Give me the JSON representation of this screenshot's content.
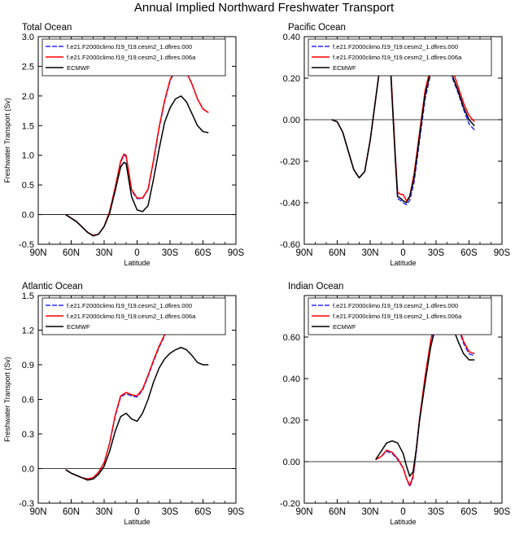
{
  "page": {
    "title": "Annual Implied Northward Freshwater Transport"
  },
  "colors": {
    "series": [
      "#2a2aff",
      "#ff0000",
      "#000000"
    ],
    "axis": "#000000",
    "zero_line": "#000000"
  },
  "chart_data": [
    {
      "id": "total",
      "type": "line",
      "title": "Total Ocean",
      "xlabel": "Latitude",
      "ylabel": "Freshwater Transport (Sv)",
      "xlim": [
        90,
        -90
      ],
      "x_ticks": [
        90,
        60,
        30,
        0,
        -30,
        -60,
        -90
      ],
      "x_tick_labels": [
        "90N",
        "60N",
        "30N",
        "0",
        "30S",
        "60S",
        "90S"
      ],
      "ylim": [
        -0.5,
        3.0
      ],
      "y_ticks": [
        -0.5,
        0,
        0.5,
        1.0,
        1.5,
        2.0,
        2.5,
        3.0
      ],
      "y_tick_labels": [
        "-0.5",
        "0.0",
        "0.5",
        "1.0",
        "1.5",
        "2.0",
        "2.5",
        "3.0"
      ],
      "grid": false,
      "legend": "top-left",
      "series": [
        {
          "name": "f.e21.F2000climo.f19_f19.cesm2_1.dfires.000",
          "style": "dashed",
          "x": [
            65,
            55,
            45,
            40,
            35,
            30,
            25,
            20,
            15,
            12,
            10,
            5,
            0,
            -5,
            -10,
            -15,
            -20,
            -25,
            -30,
            -35,
            -40,
            -45,
            -50,
            -55,
            -60,
            -65
          ],
          "y": [
            0.0,
            -0.12,
            -0.3,
            -0.35,
            -0.33,
            -0.2,
            0.05,
            0.45,
            0.88,
            1.0,
            0.98,
            0.4,
            0.27,
            0.27,
            0.42,
            0.9,
            1.45,
            1.9,
            2.25,
            2.45,
            2.5,
            2.4,
            2.2,
            1.95,
            1.78,
            1.72
          ]
        },
        {
          "name": "f.e21.F2000climo.f19_f19.cesm2_1.dfires.006a",
          "style": "solid",
          "x": [
            65,
            55,
            45,
            40,
            35,
            30,
            25,
            20,
            15,
            12,
            10,
            5,
            0,
            -5,
            -10,
            -15,
            -20,
            -25,
            -30,
            -35,
            -40,
            -45,
            -50,
            -55,
            -60,
            -65
          ],
          "y": [
            0.0,
            -0.12,
            -0.3,
            -0.35,
            -0.33,
            -0.2,
            0.05,
            0.45,
            0.9,
            1.02,
            1.0,
            0.42,
            0.28,
            0.28,
            0.43,
            0.92,
            1.47,
            1.92,
            2.27,
            2.47,
            2.5,
            2.4,
            2.2,
            1.95,
            1.78,
            1.72
          ]
        },
        {
          "name": "ECMWF",
          "style": "solid",
          "x": [
            65,
            55,
            45,
            40,
            35,
            30,
            25,
            20,
            15,
            12,
            10,
            5,
            0,
            -5,
            -10,
            -15,
            -20,
            -25,
            -30,
            -35,
            -40,
            -45,
            -50,
            -55,
            -60,
            -65
          ],
          "y": [
            0.0,
            -0.12,
            -0.3,
            -0.36,
            -0.33,
            -0.2,
            0.02,
            0.4,
            0.8,
            0.88,
            0.86,
            0.3,
            0.08,
            0.05,
            0.15,
            0.6,
            1.1,
            1.55,
            1.8,
            1.95,
            2.0,
            1.9,
            1.7,
            1.5,
            1.4,
            1.38
          ]
        }
      ]
    },
    {
      "id": "pacific",
      "type": "line",
      "title": "Pacific Ocean",
      "xlabel": "Latitude",
      "ylabel": "",
      "xlim": [
        90,
        -90
      ],
      "x_ticks": [
        90,
        60,
        30,
        0,
        -30,
        -60,
        -90
      ],
      "x_tick_labels": [
        "90N",
        "60N",
        "30N",
        "0",
        "30S",
        "60S",
        "90S"
      ],
      "ylim": [
        -0.6,
        0.4
      ],
      "y_ticks": [
        -0.6,
        -0.4,
        -0.2,
        0.0,
        0.2,
        0.4
      ],
      "y_tick_labels": [
        "-0.60",
        "-0.40",
        "-0.20",
        "0.00",
        "0.20",
        "0.40"
      ],
      "grid": false,
      "legend": "top-left",
      "series": [
        {
          "name": "f.e21.F2000climo.f19_f19.cesm2_1.dfires.000",
          "style": "dashed",
          "x": [
            65,
            60,
            55,
            50,
            45,
            40,
            35,
            30,
            25,
            20,
            15,
            12,
            10,
            7,
            5,
            2,
            0,
            -3,
            -6,
            -10,
            -15,
            -20,
            -25,
            -30,
            -35,
            -40,
            -45,
            -50,
            -55,
            -60,
            -65
          ],
          "y": [
            0.0,
            -0.01,
            -0.06,
            -0.15,
            -0.24,
            -0.28,
            -0.25,
            -0.1,
            0.1,
            0.3,
            0.36,
            0.3,
            0.1,
            -0.2,
            -0.38,
            -0.39,
            -0.4,
            -0.41,
            -0.39,
            -0.3,
            -0.1,
            0.1,
            0.22,
            0.27,
            0.28,
            0.26,
            0.2,
            0.13,
            0.05,
            -0.02,
            -0.05
          ]
        },
        {
          "name": "f.e21.F2000climo.f19_f19.cesm2_1.dfires.006a",
          "style": "solid",
          "x": [
            65,
            60,
            55,
            50,
            45,
            40,
            35,
            30,
            25,
            20,
            15,
            12,
            10,
            7,
            5,
            2,
            0,
            -3,
            -6,
            -10,
            -15,
            -20,
            -25,
            -30,
            -35,
            -40,
            -45,
            -50,
            -55,
            -60,
            -65
          ],
          "y": [
            0.0,
            -0.01,
            -0.06,
            -0.15,
            -0.24,
            -0.28,
            -0.25,
            -0.1,
            0.1,
            0.3,
            0.38,
            0.32,
            0.12,
            -0.18,
            -0.35,
            -0.36,
            -0.36,
            -0.39,
            -0.37,
            -0.26,
            -0.06,
            0.14,
            0.25,
            0.3,
            0.31,
            0.3,
            0.24,
            0.16,
            0.08,
            0.02,
            -0.01
          ]
        },
        {
          "name": "ECMWF",
          "style": "solid",
          "x": [
            65,
            60,
            55,
            50,
            45,
            40,
            35,
            30,
            25,
            20,
            15,
            12,
            10,
            7,
            5,
            2,
            0,
            -3,
            -6,
            -10,
            -15,
            -20,
            -25,
            -30,
            -35,
            -40,
            -45,
            -50,
            -55,
            -60,
            -65
          ],
          "y": [
            0.0,
            -0.01,
            -0.06,
            -0.15,
            -0.24,
            -0.28,
            -0.25,
            -0.1,
            0.1,
            0.3,
            0.37,
            0.31,
            0.1,
            -0.2,
            -0.37,
            -0.38,
            -0.39,
            -0.4,
            -0.37,
            -0.28,
            -0.08,
            0.12,
            0.23,
            0.27,
            0.28,
            0.26,
            0.21,
            0.14,
            0.06,
            0.0,
            -0.03
          ]
        }
      ]
    },
    {
      "id": "atlantic",
      "type": "line",
      "title": "Atlantic Ocean",
      "xlabel": "Latitude",
      "ylabel": "Freshwater Transport (Sv)",
      "xlim": [
        90,
        -90
      ],
      "x_ticks": [
        90,
        60,
        30,
        0,
        -30,
        -60,
        -90
      ],
      "x_tick_labels": [
        "90N",
        "60N",
        "30N",
        "0",
        "30S",
        "60S",
        "90S"
      ],
      "ylim": [
        -0.3,
        1.5
      ],
      "y_ticks": [
        -0.3,
        0.0,
        0.3,
        0.6,
        0.9,
        1.2,
        1.5
      ],
      "y_tick_labels": [
        "-0.3",
        "0.0",
        "0.3",
        "0.6",
        "0.9",
        "1.2",
        "1.5"
      ],
      "grid": false,
      "legend": "top-left",
      "series": [
        {
          "name": "f.e21.F2000climo.f19_f19.cesm2_1.dfires.000",
          "style": "dashed",
          "x": [
            65,
            60,
            55,
            50,
            45,
            40,
            35,
            30,
            25,
            20,
            15,
            10,
            5,
            0,
            -5,
            -10,
            -15,
            -20,
            -25,
            -30,
            -35,
            -40,
            -45,
            -50,
            -55,
            -60,
            -65
          ],
          "y": [
            -0.01,
            -0.04,
            -0.06,
            -0.08,
            -0.09,
            -0.08,
            -0.03,
            0.05,
            0.22,
            0.45,
            0.62,
            0.65,
            0.63,
            0.62,
            0.68,
            0.8,
            0.93,
            1.05,
            1.15,
            1.25,
            1.32,
            1.36,
            1.38,
            1.35,
            1.3,
            1.25,
            1.23
          ]
        },
        {
          "name": "f.e21.F2000climo.f19_f19.cesm2_1.dfires.006a",
          "style": "solid",
          "x": [
            65,
            60,
            55,
            50,
            45,
            40,
            35,
            30,
            25,
            20,
            15,
            10,
            5,
            0,
            -5,
            -10,
            -15,
            -20,
            -25,
            -30,
            -35,
            -40,
            -45,
            -50,
            -55,
            -60,
            -65
          ],
          "y": [
            -0.01,
            -0.04,
            -0.06,
            -0.08,
            -0.09,
            -0.08,
            -0.03,
            0.05,
            0.22,
            0.46,
            0.63,
            0.66,
            0.64,
            0.63,
            0.69,
            0.81,
            0.94,
            1.06,
            1.16,
            1.26,
            1.33,
            1.37,
            1.38,
            1.35,
            1.3,
            1.25,
            1.23
          ]
        },
        {
          "name": "ECMWF",
          "style": "solid",
          "x": [
            65,
            60,
            55,
            50,
            45,
            40,
            35,
            30,
            25,
            20,
            15,
            10,
            5,
            0,
            -5,
            -10,
            -15,
            -20,
            -25,
            -30,
            -35,
            -40,
            -45,
            -50,
            -55,
            -60,
            -65
          ],
          "y": [
            -0.01,
            -0.04,
            -0.06,
            -0.08,
            -0.1,
            -0.09,
            -0.05,
            0.02,
            0.15,
            0.32,
            0.45,
            0.48,
            0.43,
            0.41,
            0.48,
            0.6,
            0.75,
            0.87,
            0.95,
            1.0,
            1.03,
            1.05,
            1.03,
            0.98,
            0.92,
            0.9,
            0.9
          ]
        }
      ]
    },
    {
      "id": "indian",
      "type": "line",
      "title": "Indian Ocean",
      "xlabel": "Latitude",
      "ylabel": "",
      "xlim": [
        90,
        -90
      ],
      "x_ticks": [
        90,
        60,
        30,
        0,
        -30,
        -60,
        -90
      ],
      "x_tick_labels": [
        "90N",
        "60N",
        "30N",
        "0",
        "30S",
        "60S",
        "90S"
      ],
      "ylim": [
        -0.2,
        0.8
      ],
      "y_ticks": [
        -0.2,
        0.0,
        0.2,
        0.4,
        0.6
      ],
      "y_tick_labels": [
        "-0.20",
        "0.00",
        "0.20",
        "0.40",
        "0.60"
      ],
      "grid": false,
      "legend": "top-left",
      "series": [
        {
          "name": "f.e21.F2000climo.f19_f19.cesm2_1.dfires.000",
          "style": "dashed",
          "x": [
            25,
            20,
            15,
            10,
            5,
            0,
            -3,
            -6,
            -9,
            -12,
            -15,
            -20,
            -25,
            -30,
            -35,
            -40,
            -45,
            -50,
            -55,
            -60,
            -65
          ],
          "y": [
            0.01,
            0.025,
            0.05,
            0.04,
            0.01,
            -0.03,
            -0.08,
            -0.12,
            -0.08,
            0.05,
            0.2,
            0.4,
            0.57,
            0.7,
            0.76,
            0.77,
            0.73,
            0.65,
            0.57,
            0.52,
            0.51
          ]
        },
        {
          "name": "f.e21.F2000climo.f19_f19.cesm2_1.dfires.006a",
          "style": "solid",
          "x": [
            25,
            20,
            15,
            10,
            5,
            0,
            -3,
            -6,
            -9,
            -12,
            -15,
            -20,
            -25,
            -30,
            -35,
            -40,
            -45,
            -50,
            -55,
            -60,
            -65
          ],
          "y": [
            0.01,
            0.025,
            0.055,
            0.045,
            0.015,
            -0.03,
            -0.08,
            -0.115,
            -0.07,
            0.06,
            0.21,
            0.41,
            0.58,
            0.71,
            0.77,
            0.78,
            0.74,
            0.66,
            0.58,
            0.53,
            0.52
          ]
        },
        {
          "name": "ECMWF",
          "style": "solid",
          "x": [
            25,
            20,
            15,
            10,
            5,
            0,
            -3,
            -6,
            -9,
            -12,
            -15,
            -20,
            -25,
            -30,
            -35,
            -40,
            -45,
            -50,
            -55,
            -60,
            -65
          ],
          "y": [
            0.01,
            0.05,
            0.09,
            0.1,
            0.09,
            0.04,
            -0.02,
            -0.07,
            -0.05,
            0.06,
            0.2,
            0.38,
            0.55,
            0.66,
            0.71,
            0.7,
            0.65,
            0.58,
            0.52,
            0.49,
            0.49
          ]
        }
      ]
    }
  ]
}
